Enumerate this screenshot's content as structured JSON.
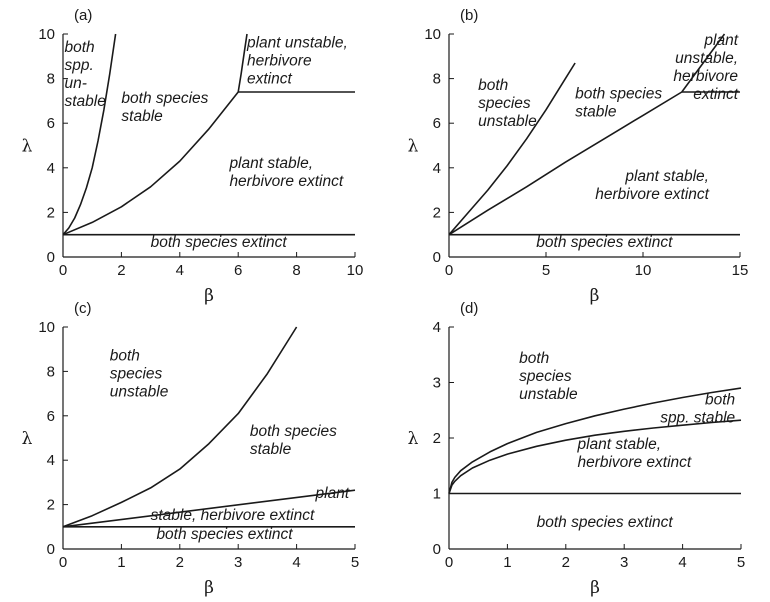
{
  "chart_data": [
    {
      "type": "line",
      "panel_label": "(a)",
      "xlabel": "β",
      "ylabel": "λ",
      "xlim": [
        0,
        10
      ],
      "ylim": [
        0,
        10
      ],
      "xticks": [
        0,
        2,
        4,
        6,
        8,
        10
      ],
      "yticks": [
        0,
        2,
        4,
        6,
        8,
        10
      ],
      "series": [
        {
          "x": [
            0,
            0.2,
            0.4,
            0.6,
            0.8,
            1.0,
            1.2,
            1.4,
            1.6,
            1.8
          ],
          "y": [
            1.0,
            1.3,
            1.75,
            2.35,
            3.1,
            4.0,
            5.2,
            6.6,
            8.2,
            10.0
          ]
        },
        {
          "x": [
            0,
            1,
            2,
            3,
            4,
            5,
            6
          ],
          "y": [
            1.0,
            1.55,
            2.25,
            3.15,
            4.3,
            5.75,
            7.4
          ]
        },
        {
          "x": [
            6,
            6.1,
            6.2,
            6.3
          ],
          "y": [
            7.4,
            8.2,
            9.1,
            10.0
          ]
        },
        {
          "x": [
            6,
            10
          ],
          "y": [
            7.4,
            7.4
          ]
        },
        {
          "x": [
            0,
            10
          ],
          "y": [
            1.0,
            1.0
          ]
        }
      ],
      "annotations": [
        {
          "lines": [
            "both",
            "spp.",
            "un-",
            "stable"
          ],
          "x": 0.05,
          "y": 9.2
        },
        {
          "lines": [
            "both species",
            "stable"
          ],
          "x": 2,
          "y": 6.9
        },
        {
          "lines": [
            "plant unstable,",
            "herbivore",
            "extinct"
          ],
          "x": 6.3,
          "y": 9.4
        },
        {
          "lines": [
            "plant stable,",
            "herbivore extinct"
          ],
          "x": 5.7,
          "y": 4.0
        },
        {
          "lines": [
            "both species extinct"
          ],
          "x": 3.0,
          "y": 0.45
        }
      ]
    },
    {
      "type": "line",
      "panel_label": "(b)",
      "xlabel": "β",
      "ylabel": "λ",
      "xlim": [
        0,
        15
      ],
      "ylim": [
        0,
        10
      ],
      "xticks": [
        0,
        5,
        10,
        15
      ],
      "yticks": [
        0,
        2,
        4,
        6,
        8,
        10
      ],
      "series": [
        {
          "x": [
            0,
            1,
            2,
            3,
            4,
            5,
            6,
            6.5
          ],
          "y": [
            1.0,
            2.0,
            3.0,
            4.1,
            5.3,
            6.6,
            8.0,
            8.7
          ]
        },
        {
          "x": [
            0,
            2,
            4,
            6,
            8,
            10,
            12,
            14.2
          ],
          "y": [
            1.0,
            2.1,
            3.15,
            4.25,
            5.3,
            6.35,
            7.4,
            10.0
          ]
        },
        {
          "x": [
            12,
            15
          ],
          "y": [
            7.4,
            7.4
          ]
        },
        {
          "x": [
            0,
            15
          ],
          "y": [
            1.0,
            1.0
          ]
        }
      ],
      "annotations": [
        {
          "lines": [
            "both",
            "species",
            "unstable"
          ],
          "x": 1.5,
          "y": 7.5
        },
        {
          "lines": [
            "both species",
            "stable"
          ],
          "x": 6.5,
          "y": 7.1
        },
        {
          "lines": [
            "plant",
            "unstable,",
            "herbivore",
            "extinct"
          ],
          "x": 14.9,
          "y": 9.5
        },
        {
          "lines": [
            "plant stable,",
            "herbivore extinct"
          ],
          "x": 13.4,
          "y": 3.4
        },
        {
          "lines": [
            "both species extinct"
          ],
          "x": 4.5,
          "y": 0.45
        }
      ]
    },
    {
      "type": "line",
      "panel_label": "(c)",
      "xlabel": "β",
      "ylabel": "λ",
      "xlim": [
        0,
        5
      ],
      "ylim": [
        0,
        10
      ],
      "xticks": [
        0,
        1,
        2,
        3,
        4,
        5
      ],
      "yticks": [
        0,
        2,
        4,
        6,
        8,
        10
      ],
      "series": [
        {
          "x": [
            0,
            0.5,
            1,
            1.5,
            2,
            2.5,
            3,
            3.5,
            4
          ],
          "y": [
            1.0,
            1.5,
            2.1,
            2.75,
            3.6,
            4.75,
            6.1,
            7.9,
            10.0
          ]
        },
        {
          "x": [
            0,
            5
          ],
          "y": [
            1.0,
            2.65
          ]
        },
        {
          "x": [
            0,
            5
          ],
          "y": [
            1.0,
            1.0
          ]
        }
      ],
      "annotations": [
        {
          "lines": [
            "both",
            "species",
            "unstable"
          ],
          "x": 0.8,
          "y": 8.5
        },
        {
          "lines": [
            "both species",
            "stable"
          ],
          "x": 3.2,
          "y": 5.1
        },
        {
          "lines": [
            "plant"
          ],
          "x": 4.9,
          "y": 2.3
        },
        {
          "lines": [
            "stable, herbivore extinct"
          ],
          "x": 1.5,
          "y": 1.3
        },
        {
          "lines": [
            "both species extinct"
          ],
          "x": 1.6,
          "y": 0.45
        }
      ]
    },
    {
      "type": "line",
      "panel_label": "(d)",
      "xlabel": "β",
      "ylabel": "λ",
      "xlim": [
        0,
        5
      ],
      "ylim": [
        0,
        4
      ],
      "xticks": [
        0,
        1,
        2,
        3,
        4,
        5
      ],
      "yticks": [
        0,
        1,
        2,
        3,
        4
      ],
      "series": [
        {
          "x": [
            0,
            0.05,
            0.1,
            0.2,
            0.4,
            0.7,
            1,
            1.5,
            2,
            2.5,
            3,
            3.5,
            4,
            4.5,
            5
          ],
          "y": [
            1.0,
            1.2,
            1.29,
            1.41,
            1.57,
            1.75,
            1.9,
            2.1,
            2.26,
            2.4,
            2.52,
            2.63,
            2.73,
            2.82,
            2.9
          ]
        },
        {
          "x": [
            0,
            0.05,
            0.1,
            0.2,
            0.4,
            0.7,
            1,
            1.5,
            2,
            2.5,
            3,
            3.5,
            4,
            4.5,
            5
          ],
          "y": [
            1.0,
            1.15,
            1.22,
            1.32,
            1.46,
            1.6,
            1.71,
            1.85,
            1.96,
            2.05,
            2.12,
            2.18,
            2.23,
            2.28,
            2.32
          ]
        },
        {
          "x": [
            0,
            5
          ],
          "y": [
            1.0,
            1.0
          ]
        }
      ],
      "annotations": [
        {
          "lines": [
            "both",
            "species",
            "unstable"
          ],
          "x": 1.2,
          "y": 3.35
        },
        {
          "lines": [
            "both",
            "spp. stable"
          ],
          "x": 4.9,
          "y": 2.6
        },
        {
          "lines": [
            "plant stable,",
            "herbivore extinct"
          ],
          "x": 2.2,
          "y": 1.8
        },
        {
          "lines": [
            "both species extinct"
          ],
          "x": 1.5,
          "y": 0.4
        }
      ]
    }
  ]
}
